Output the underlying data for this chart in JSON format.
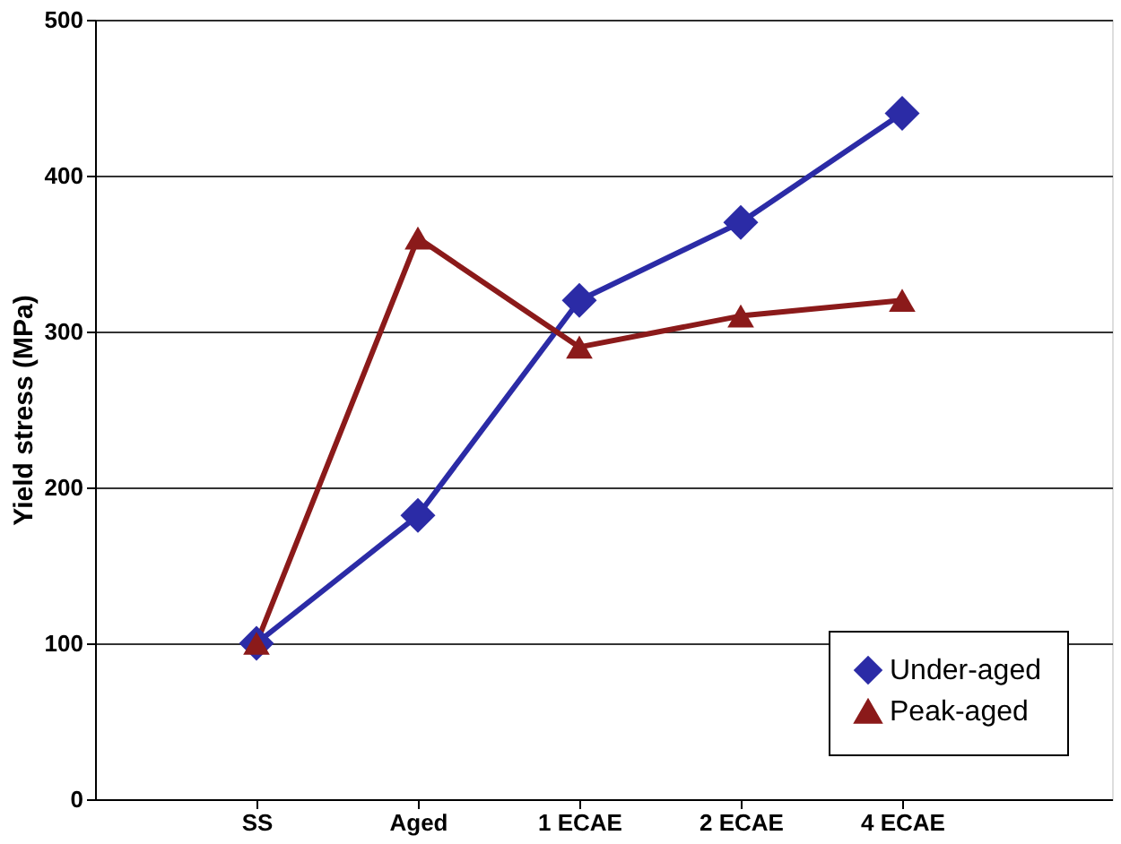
{
  "chart_data": {
    "type": "line",
    "ylabel": "Yield stress (MPa)",
    "categories": [
      "SS",
      "Aged",
      "1 ECAE",
      "2 ECAE",
      "4 ECAE"
    ],
    "series": [
      {
        "name": "Under-aged",
        "color": "#2b2ba6",
        "marker": "diamond",
        "values": [
          100,
          182,
          320,
          370,
          440
        ]
      },
      {
        "name": "Peak-aged",
        "color": "#8b1a1a",
        "marker": "triangle",
        "values": [
          100,
          360,
          290,
          310,
          320
        ]
      }
    ],
    "ylim": [
      0,
      500
    ],
    "yticks": [
      0,
      100,
      200,
      300,
      400,
      500
    ],
    "grid": "y",
    "legend": "bottom right",
    "line_style": "solid"
  }
}
